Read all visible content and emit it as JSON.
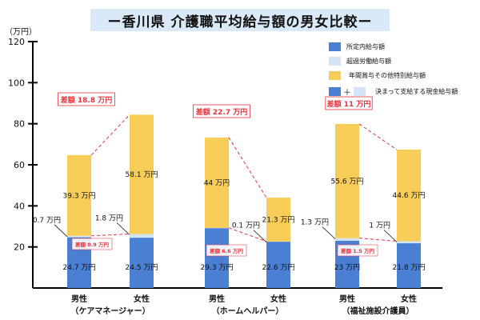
{
  "title": "ー香川県 介護職平均給与額の男女比較ー",
  "unit": "（万円）",
  "colors": {
    "base": "#4a7fd4",
    "overtime": "#d2e4f5",
    "bonus": "#f7cd57",
    "diff": "#e8333a"
  },
  "legend": [
    {
      "label": "所定内給与額",
      "color": "#4a7fd4"
    },
    {
      "label": "超過労働給与額",
      "color": "#d2e4f5"
    },
    {
      "label": "年間賞与その他特別給与額",
      "color": "#f7cd57"
    },
    {
      "label": "決まって支給する現金給与額",
      "plus": "＋"
    }
  ],
  "chart_data": {
    "type": "bar",
    "stacked": true,
    "ylim": [
      0,
      120
    ],
    "yticks": [
      20,
      40,
      60,
      80,
      100,
      120
    ],
    "groups": [
      {
        "name": "（ケアマネージャー）",
        "diff_total": "差額 18.8 万円",
        "diff_monthly": "差額 0.9 万円",
        "bars": [
          {
            "label": "男性",
            "base": 24.7,
            "overtime": 0.7,
            "bonus": 39.3,
            "base_label": "24.7 万円",
            "overtime_label": "0.7 万円",
            "bonus_label": "39.3 万円"
          },
          {
            "label": "女性",
            "base": 24.5,
            "overtime": 1.8,
            "bonus": 58.1,
            "base_label": "24.5 万円",
            "overtime_label": "1.8 万円",
            "bonus_label": "58.1 万円"
          }
        ]
      },
      {
        "name": "（ホームヘルパー）",
        "diff_total": "差額 22.7 万円",
        "diff_monthly": "差額 6.6 万円",
        "bars": [
          {
            "label": "男性",
            "base": 29.3,
            "overtime": 0,
            "bonus": 44,
            "base_label": "29.3 万円",
            "overtime_label": "",
            "bonus_label": "44 万円"
          },
          {
            "label": "女性",
            "base": 22.6,
            "overtime": 0.1,
            "bonus": 21.3,
            "base_label": "22.6 万円",
            "overtime_label": "0.1 万円",
            "bonus_label": "21.3 万円"
          }
        ]
      },
      {
        "name": "（福祉施設介護員）",
        "diff_total": "差額 11 万円",
        "diff_monthly": "差額 1.5 万円",
        "bars": [
          {
            "label": "男性",
            "base": 23,
            "overtime": 1.3,
            "bonus": 55.6,
            "base_label": "23 万円",
            "overtime_label": "1.3 万円",
            "bonus_label": "55.6 万円"
          },
          {
            "label": "女性",
            "base": 21.8,
            "overtime": 1,
            "bonus": 44.6,
            "base_label": "21.8 万円",
            "overtime_label": "1 万円",
            "bonus_label": "44.6 万円"
          }
        ]
      }
    ]
  }
}
